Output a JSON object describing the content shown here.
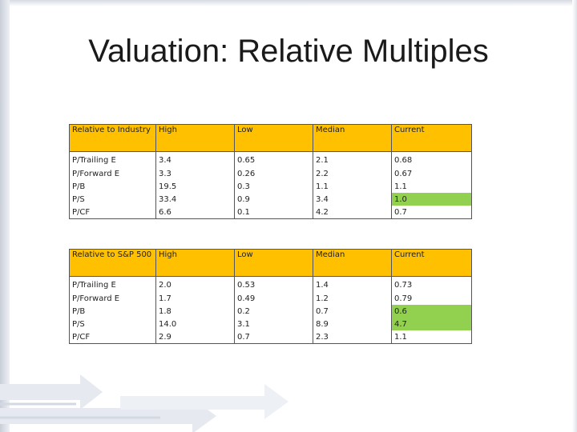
{
  "title": "Valuation: Relative Multiples",
  "tables": [
    {
      "headers": [
        "Relative to Industry",
        "High",
        "Low",
        "Median",
        "Current"
      ],
      "rows": [
        [
          "P/Trailing E",
          "3.4",
          "0.65",
          "2.1",
          "0.68"
        ],
        [
          "P/Forward E",
          "3.3",
          "0.26",
          "2.2",
          "0.67"
        ],
        [
          "P/B",
          "19.5",
          "0.3",
          "1.1",
          "1.1"
        ],
        [
          "P/S",
          "33.4",
          "0.9",
          "3.4",
          "1.0"
        ],
        [
          "P/CF",
          "6.6",
          "0.1",
          "4.2",
          "0.7"
        ]
      ]
    },
    {
      "headers": [
        "Relative to S&P 500",
        "High",
        "Low",
        "Median",
        "Current"
      ],
      "rows": [
        [
          "P/Trailing E",
          "2.0",
          "0.53",
          "1.4",
          "0.73"
        ],
        [
          "P/Forward E",
          "1.7",
          "0.49",
          "1.2",
          "0.79"
        ],
        [
          "P/B",
          "1.8",
          "0.2",
          "0.7",
          "0.6"
        ],
        [
          "P/S",
          "14.0",
          "3.1",
          "8.9",
          "4.7"
        ],
        [
          "P/CF",
          "2.9",
          "0.7",
          "2.3",
          "1.1"
        ]
      ]
    }
  ],
  "colors": {
    "header_fill": "#ffc000",
    "highlight_fill": "#92d050"
  }
}
